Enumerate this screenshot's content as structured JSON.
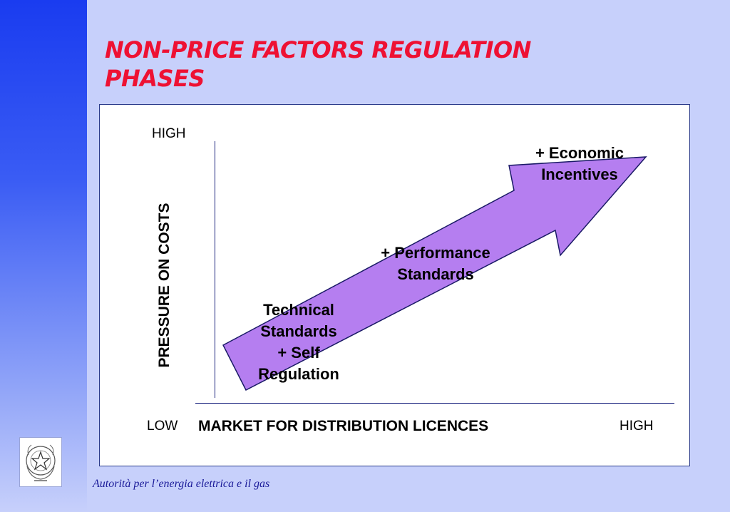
{
  "slide": {
    "title_line1": "NON-PRICE FACTORS REGULATION",
    "title_line2": "PHASES",
    "footer": "Autorità per l’energia elettrica e il gas"
  },
  "diagram": {
    "y_axis": {
      "label": "PRESSURE ON COSTS",
      "high": "HIGH"
    },
    "x_axis": {
      "label": "MARKET FOR DISTRIBUTION LICENCES",
      "low": "LOW",
      "high": "HIGH"
    },
    "phases": [
      {
        "lines": [
          "Technical",
          "Standards",
          "+ Self",
          "Regulation"
        ]
      },
      {
        "lines": [
          "+ Performance",
          "Standards"
        ]
      },
      {
        "lines": [
          "+ Economic",
          "Incentives"
        ]
      }
    ],
    "arrow_color": "#b57ef0"
  },
  "colors": {
    "title": "#ee1133",
    "background": "#c7d0fb",
    "band": "#1a3cf0",
    "footer": "#1a1a99"
  },
  "icons": {
    "emblem": "italian-republic-emblem-icon"
  }
}
